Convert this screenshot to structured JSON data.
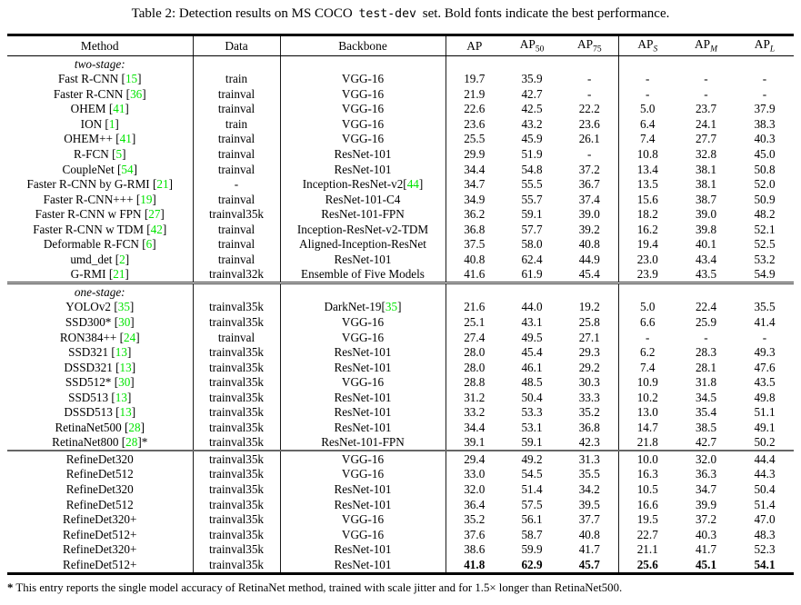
{
  "title": {
    "text_before": "Table 2: Detection results on MS COCO",
    "code": "test-dev",
    "text_after": "set. Bold fonts indicate the best performance."
  },
  "footnote": {
    "marker": "*",
    "text": "This entry reports the single model accuracy of RetinaNet method, trained with scale jitter and for 1.5× longer than RetinaNet500."
  },
  "colors": {
    "citation_green": "#00e400",
    "rule_gray": "#666666"
  },
  "chart_data": {
    "type": "table",
    "title": "Table 2: Detection results on MS COCO test-dev set"
  },
  "table": {
    "columns": [
      {
        "label": "Method",
        "sub": "",
        "sub_italic": false
      },
      {
        "label": "Data",
        "sub": "",
        "sub_italic": false
      },
      {
        "label": "Backbone",
        "sub": "",
        "sub_italic": false
      },
      {
        "label": "AP",
        "sub": "",
        "sub_italic": false
      },
      {
        "label": "AP",
        "sub": "50",
        "sub_italic": false
      },
      {
        "label": "AP",
        "sub": "75",
        "sub_italic": false
      },
      {
        "label": "AP",
        "sub": "S",
        "sub_italic": true
      },
      {
        "label": "AP",
        "sub": "M",
        "sub_italic": true
      },
      {
        "label": "AP",
        "sub": "L",
        "sub_italic": true
      }
    ],
    "rows": [
      {
        "type": "section",
        "label": "two-stage:"
      },
      {
        "type": "data",
        "method": "Fast R-CNN",
        "cite": "15",
        "method_suffix": "",
        "data": "train",
        "backbone": "VGG-16",
        "backbone_cite": "",
        "vals": [
          "19.7",
          "35.9",
          "-",
          "-",
          "-",
          "-"
        ],
        "bold": false
      },
      {
        "type": "data",
        "method": "Faster R-CNN",
        "cite": "36",
        "method_suffix": "",
        "data": "trainval",
        "backbone": "VGG-16",
        "backbone_cite": "",
        "vals": [
          "21.9",
          "42.7",
          "-",
          "-",
          "-",
          "-"
        ],
        "bold": false
      },
      {
        "type": "data",
        "method": "OHEM",
        "cite": "41",
        "method_suffix": "",
        "data": "trainval",
        "backbone": "VGG-16",
        "backbone_cite": "",
        "vals": [
          "22.6",
          "42.5",
          "22.2",
          "5.0",
          "23.7",
          "37.9"
        ],
        "bold": false
      },
      {
        "type": "data",
        "method": "ION",
        "cite": "1",
        "method_suffix": "",
        "data": "train",
        "backbone": "VGG-16",
        "backbone_cite": "",
        "vals": [
          "23.6",
          "43.2",
          "23.6",
          "6.4",
          "24.1",
          "38.3"
        ],
        "bold": false
      },
      {
        "type": "data",
        "method": "OHEM++",
        "cite": "41",
        "method_suffix": "",
        "data": "trainval",
        "backbone": "VGG-16",
        "backbone_cite": "",
        "vals": [
          "25.5",
          "45.9",
          "26.1",
          "7.4",
          "27.7",
          "40.3"
        ],
        "bold": false
      },
      {
        "type": "data",
        "method": "R-FCN",
        "cite": "5",
        "method_suffix": "",
        "data": "trainval",
        "backbone": "ResNet-101",
        "backbone_cite": "",
        "vals": [
          "29.9",
          "51.9",
          "-",
          "10.8",
          "32.8",
          "45.0"
        ],
        "bold": false
      },
      {
        "type": "data",
        "method": "CoupleNet",
        "cite": "54",
        "method_suffix": "",
        "data": "trainval",
        "backbone": "ResNet-101",
        "backbone_cite": "",
        "vals": [
          "34.4",
          "54.8",
          "37.2",
          "13.4",
          "38.1",
          "50.8"
        ],
        "bold": false
      },
      {
        "type": "data",
        "method": "Faster R-CNN by G-RMI",
        "cite": "21",
        "method_suffix": "",
        "data": "-",
        "backbone": "Inception-ResNet-v2",
        "backbone_cite": "44",
        "vals": [
          "34.7",
          "55.5",
          "36.7",
          "13.5",
          "38.1",
          "52.0"
        ],
        "bold": false
      },
      {
        "type": "data",
        "method": "Faster R-CNN+++",
        "cite": "19",
        "method_suffix": "",
        "data": "trainval",
        "backbone": "ResNet-101-C4",
        "backbone_cite": "",
        "vals": [
          "34.9",
          "55.7",
          "37.4",
          "15.6",
          "38.7",
          "50.9"
        ],
        "bold": false
      },
      {
        "type": "data",
        "method": "Faster R-CNN w FPN",
        "cite": "27",
        "method_suffix": "",
        "data": "trainval35k",
        "backbone": "ResNet-101-FPN",
        "backbone_cite": "",
        "vals": [
          "36.2",
          "59.1",
          "39.0",
          "18.2",
          "39.0",
          "48.2"
        ],
        "bold": false
      },
      {
        "type": "data",
        "method": "Faster R-CNN w TDM",
        "cite": "42",
        "method_suffix": "",
        "data": "trainval",
        "backbone": "Inception-ResNet-v2-TDM",
        "backbone_cite": "",
        "vals": [
          "36.8",
          "57.7",
          "39.2",
          "16.2",
          "39.8",
          "52.1"
        ],
        "bold": false
      },
      {
        "type": "data",
        "method": "Deformable R-FCN",
        "cite": "6",
        "method_suffix": "",
        "data": "trainval",
        "backbone": "Aligned-Inception-ResNet",
        "backbone_cite": "",
        "vals": [
          "37.5",
          "58.0",
          "40.8",
          "19.4",
          "40.1",
          "52.5"
        ],
        "bold": false
      },
      {
        "type": "data",
        "method": "umd_det",
        "cite": "2",
        "method_suffix": "",
        "data": "trainval",
        "backbone": "ResNet-101",
        "backbone_cite": "",
        "vals": [
          "40.8",
          "62.4",
          "44.9",
          "23.0",
          "43.4",
          "53.2"
        ],
        "bold": false
      },
      {
        "type": "data",
        "method": "G-RMI",
        "cite": "21",
        "method_suffix": "",
        "data": "trainval32k",
        "backbone": "Ensemble of Five Models",
        "backbone_cite": "",
        "vals": [
          "41.6",
          "61.9",
          "45.4",
          "23.9",
          "43.5",
          "54.9"
        ],
        "bold": false
      },
      {
        "type": "section",
        "label": "one-stage:",
        "rule_before": "double"
      },
      {
        "type": "data",
        "method": "YOLOv2",
        "cite": "35",
        "method_suffix": "",
        "data": "trainval35k",
        "backbone": "DarkNet-19",
        "backbone_cite": "35",
        "vals": [
          "21.6",
          "44.0",
          "19.2",
          "5.0",
          "22.4",
          "35.5"
        ],
        "bold": false
      },
      {
        "type": "data",
        "method": "SSD300*",
        "cite": "30",
        "method_suffix": "",
        "data": "trainval35k",
        "backbone": "VGG-16",
        "backbone_cite": "",
        "vals": [
          "25.1",
          "43.1",
          "25.8",
          "6.6",
          "25.9",
          "41.4"
        ],
        "bold": false
      },
      {
        "type": "data",
        "method": "RON384++",
        "cite": "24",
        "method_suffix": "",
        "data": "trainval",
        "backbone": "VGG-16",
        "backbone_cite": "",
        "vals": [
          "27.4",
          "49.5",
          "27.1",
          "-",
          "-",
          "-"
        ],
        "bold": false
      },
      {
        "type": "data",
        "method": "SSD321",
        "cite": "13",
        "method_suffix": "",
        "data": "trainval35k",
        "backbone": "ResNet-101",
        "backbone_cite": "",
        "vals": [
          "28.0",
          "45.4",
          "29.3",
          "6.2",
          "28.3",
          "49.3"
        ],
        "bold": false
      },
      {
        "type": "data",
        "method": "DSSD321",
        "cite": "13",
        "method_suffix": "",
        "data": "trainval35k",
        "backbone": "ResNet-101",
        "backbone_cite": "",
        "vals": [
          "28.0",
          "46.1",
          "29.2",
          "7.4",
          "28.1",
          "47.6"
        ],
        "bold": false
      },
      {
        "type": "data",
        "method": "SSD512*",
        "cite": "30",
        "method_suffix": "",
        "data": "trainval35k",
        "backbone": "VGG-16",
        "backbone_cite": "",
        "vals": [
          "28.8",
          "48.5",
          "30.3",
          "10.9",
          "31.8",
          "43.5"
        ],
        "bold": false
      },
      {
        "type": "data",
        "method": "SSD513",
        "cite": "13",
        "method_suffix": "",
        "data": "trainval35k",
        "backbone": "ResNet-101",
        "backbone_cite": "",
        "vals": [
          "31.2",
          "50.4",
          "33.3",
          "10.2",
          "34.5",
          "49.8"
        ],
        "bold": false
      },
      {
        "type": "data",
        "method": "DSSD513",
        "cite": "13",
        "method_suffix": "",
        "data": "trainval35k",
        "backbone": "ResNet-101",
        "backbone_cite": "",
        "vals": [
          "33.2",
          "53.3",
          "35.2",
          "13.0",
          "35.4",
          "51.1"
        ],
        "bold": false
      },
      {
        "type": "data",
        "method": "RetinaNet500",
        "cite": "28",
        "method_suffix": "",
        "data": "trainval35k",
        "backbone": "ResNet-101",
        "backbone_cite": "",
        "vals": [
          "34.4",
          "53.1",
          "36.8",
          "14.7",
          "38.5",
          "49.1"
        ],
        "bold": false
      },
      {
        "type": "data",
        "method": "RetinaNet800",
        "cite": "28",
        "method_suffix": "*",
        "data": "trainval35k",
        "backbone": "ResNet-101-FPN",
        "backbone_cite": "",
        "vals": [
          "39.1",
          "59.1",
          "42.3",
          "21.8",
          "42.7",
          "50.2"
        ],
        "bold": false
      },
      {
        "type": "data",
        "method": "RefineDet320",
        "cite": "",
        "method_suffix": "",
        "data": "trainval35k",
        "backbone": "VGG-16",
        "backbone_cite": "",
        "vals": [
          "29.4",
          "49.2",
          "31.3",
          "10.0",
          "32.0",
          "44.4"
        ],
        "bold": false,
        "rule_before": "single"
      },
      {
        "type": "data",
        "method": "RefineDet512",
        "cite": "",
        "method_suffix": "",
        "data": "trainval35k",
        "backbone": "VGG-16",
        "backbone_cite": "",
        "vals": [
          "33.0",
          "54.5",
          "35.5",
          "16.3",
          "36.3",
          "44.3"
        ],
        "bold": false
      },
      {
        "type": "data",
        "method": "RefineDet320",
        "cite": "",
        "method_suffix": "",
        "data": "trainval35k",
        "backbone": "ResNet-101",
        "backbone_cite": "",
        "vals": [
          "32.0",
          "51.4",
          "34.2",
          "10.5",
          "34.7",
          "50.4"
        ],
        "bold": false
      },
      {
        "type": "data",
        "method": "RefineDet512",
        "cite": "",
        "method_suffix": "",
        "data": "trainval35k",
        "backbone": "ResNet-101",
        "backbone_cite": "",
        "vals": [
          "36.4",
          "57.5",
          "39.5",
          "16.6",
          "39.9",
          "51.4"
        ],
        "bold": false
      },
      {
        "type": "data",
        "method": "RefineDet320+",
        "cite": "",
        "method_suffix": "",
        "data": "trainval35k",
        "backbone": "VGG-16",
        "backbone_cite": "",
        "vals": [
          "35.2",
          "56.1",
          "37.7",
          "19.5",
          "37.2",
          "47.0"
        ],
        "bold": false
      },
      {
        "type": "data",
        "method": "RefineDet512+",
        "cite": "",
        "method_suffix": "",
        "data": "trainval35k",
        "backbone": "VGG-16",
        "backbone_cite": "",
        "vals": [
          "37.6",
          "58.7",
          "40.8",
          "22.7",
          "40.3",
          "48.3"
        ],
        "bold": false
      },
      {
        "type": "data",
        "method": "RefineDet320+",
        "cite": "",
        "method_suffix": "",
        "data": "trainval35k",
        "backbone": "ResNet-101",
        "backbone_cite": "",
        "vals": [
          "38.6",
          "59.9",
          "41.7",
          "21.1",
          "41.7",
          "52.3"
        ],
        "bold": false
      },
      {
        "type": "data",
        "method": "RefineDet512+",
        "cite": "",
        "method_suffix": "",
        "data": "trainval35k",
        "backbone": "ResNet-101",
        "backbone_cite": "",
        "vals": [
          "41.8",
          "62.9",
          "45.7",
          "25.6",
          "45.1",
          "54.1"
        ],
        "bold": true
      }
    ]
  }
}
